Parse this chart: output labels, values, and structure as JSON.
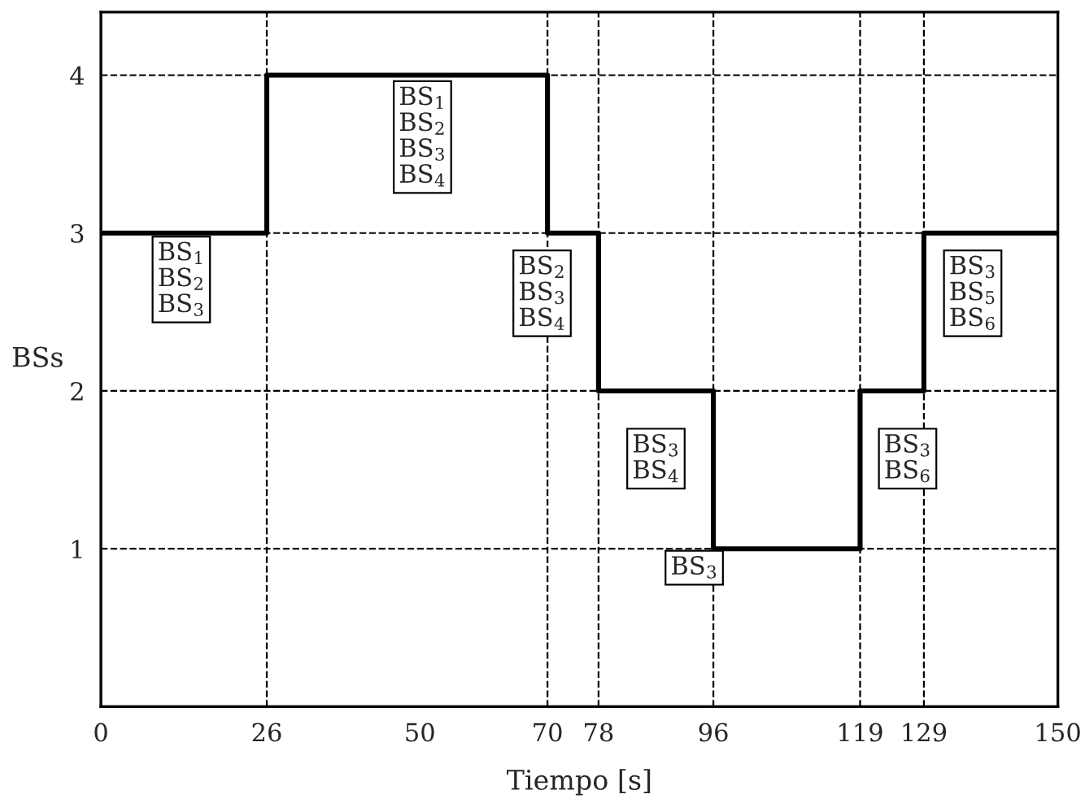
{
  "chart_data": {
    "type": "step",
    "xlabel": "Tiempo [s]",
    "ylabel": "BSs",
    "x": [
      0,
      26,
      70,
      78,
      96,
      119,
      129,
      150
    ],
    "series": [
      {
        "color": "#000000",
        "values": [
          3,
          4,
          3,
          2,
          1,
          2,
          3,
          3
        ]
      }
    ],
    "xlim": [
      0,
      150
    ],
    "xticks": [
      0,
      26,
      50,
      70,
      78,
      96,
      119,
      129,
      150
    ],
    "ylim": [
      0,
      4.4
    ],
    "yticks": [
      1,
      2,
      3,
      4
    ],
    "grid": "y",
    "line_style": "solid",
    "marker": "none",
    "ref_lines": [
      {
        "axis": "x",
        "value": 26,
        "line_style": "dashed",
        "color": "#000000"
      },
      {
        "axis": "x",
        "value": 70,
        "line_style": "dashed",
        "color": "#000000"
      },
      {
        "axis": "x",
        "value": 78,
        "line_style": "dashed",
        "color": "#000000"
      },
      {
        "axis": "x",
        "value": 96,
        "line_style": "dashed",
        "color": "#000000"
      },
      {
        "axis": "x",
        "value": 119,
        "line_style": "dashed",
        "color": "#000000"
      },
      {
        "axis": "x",
        "value": 129,
        "line_style": "dashed",
        "color": "#000000"
      }
    ],
    "annotations": [
      "BS$_{1}$\nBS$_{2}$\nBS$_{3}$",
      "BS$_{1}$\nBS$_{2}$\nBS$_{3}$\nBS$_{4}$",
      "BS$_{2}$\nBS$_{3}$\nBS$_{4}$",
      "BS$_{3}$\nBS$_{4}$",
      "BS$_{3}$",
      "BS$_{3}$\nBS$_{6}$",
      "BS$_{3}$\nBS$_{5}$\nBS$_{6}$"
    ]
  }
}
